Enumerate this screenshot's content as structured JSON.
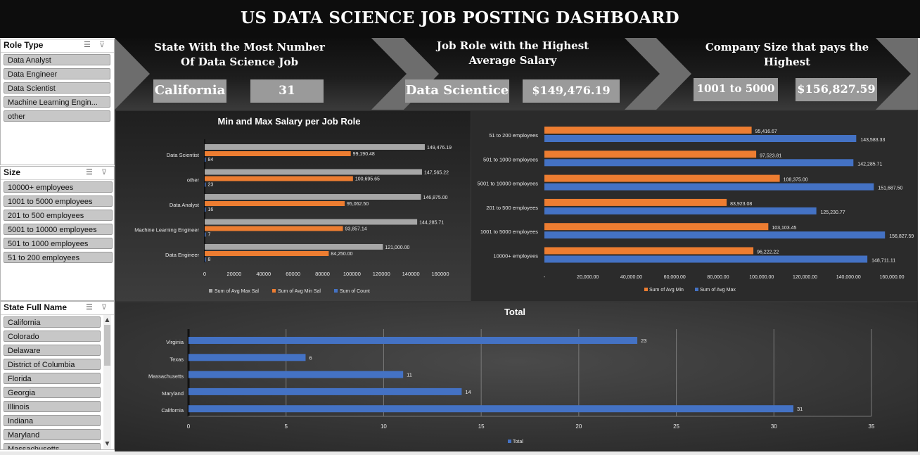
{
  "dashboard": {
    "title": "US DATA SCIENCE JOB POSTING DASHBOARD"
  },
  "slicers": {
    "role_type": {
      "title": "Role Type",
      "items": [
        "Data Analyst",
        "Data Engineer",
        "Data Scientist",
        "Machine Learning Engin...",
        "other"
      ]
    },
    "size": {
      "title": "Size",
      "items": [
        "10000+ employees",
        "1001 to 5000 employees",
        "201 to 500 employees",
        "5001 to 10000 employees",
        "501 to 1000 employees",
        "51 to 200 employees"
      ]
    },
    "state": {
      "title": "State Full Name",
      "items": [
        "California",
        "Colorado",
        "Delaware",
        "District of Columbia",
        "Florida",
        "Georgia",
        "Illinois",
        "Indiana",
        "Maryland",
        "Massachusetts"
      ]
    }
  },
  "kpis": {
    "state": {
      "title_line1": "State With the Most Number",
      "title_line2": "Of Data Science Job",
      "value": "California",
      "count": "31"
    },
    "role": {
      "title_line1": "Job Role with the Highest",
      "title_line2": "Average Salary",
      "value": "Data Scientice",
      "amount": "$149,476.19"
    },
    "company": {
      "title_line1": "Company Size that pays the",
      "title_line2": "Highest",
      "value": "1001 to 5000",
      "amount": "$156,827.59"
    }
  },
  "colors": {
    "gray_series": "#a6a6a6",
    "orange_series": "#ed7d31",
    "blue_series": "#4472c4",
    "panel": "#333333",
    "kpi_box": "#9a9a9a"
  },
  "chart_data": [
    {
      "type": "bar",
      "orientation": "horizontal",
      "title": "Min and Max Salary per Job Role",
      "categories": [
        "Data Scientist",
        "other",
        "Data Analyst",
        "Machine Learning Engineer",
        "Data Engineer"
      ],
      "series": [
        {
          "name": "Sum of Avg Max Sal",
          "values": [
            149476.19,
            147565.22,
            146875.0,
            144285.71,
            121000.0
          ],
          "labels": [
            "149,476.19",
            "147,565.22",
            "146,875.00",
            "144,285.71",
            "121,000.00"
          ]
        },
        {
          "name": "Sum of Avg Min Sal",
          "values": [
            99190.48,
            100695.65,
            95062.5,
            93857.14,
            84250.0
          ],
          "labels": [
            "99,190.48",
            "100,695.65",
            "95,062.50",
            "93,857.14",
            "84,250.00"
          ]
        },
        {
          "name": "Sum of Count",
          "values": [
            84,
            23,
            16,
            7,
            8
          ],
          "labels": [
            "84",
            "23",
            "16",
            "7",
            "8"
          ]
        }
      ],
      "xlim": [
        0,
        160000
      ],
      "xticks": [
        "0",
        "20000",
        "40000",
        "60000",
        "80000",
        "100000",
        "120000",
        "140000",
        "160000"
      ],
      "legend": "bottom",
      "grid": false
    },
    {
      "type": "bar",
      "orientation": "horizontal",
      "title": "",
      "categories": [
        "51 to 200 employees",
        "501 to 1000 employees",
        "5001 to 10000 employees",
        "201 to 500 employees",
        "1001 to 5000 employees",
        "10000+ employees"
      ],
      "series": [
        {
          "name": "Sum of Avg Min",
          "values": [
            95416.67,
            97523.81,
            108375.0,
            83923.08,
            103103.45,
            96222.22
          ],
          "labels": [
            "95,416.67",
            "97,523.81",
            "108,375.00",
            "83,923.08",
            "103,103.45",
            "96,222.22"
          ]
        },
        {
          "name": "Sum of Avg Max",
          "values": [
            143583.33,
            142285.71,
            151687.5,
            125230.77,
            156827.59,
            148711.11
          ],
          "labels": [
            "143,583.33",
            "142,285.71",
            "151,687.50",
            "125,230.77",
            "156,827.59",
            "148,711.11"
          ]
        }
      ],
      "xlim": [
        0,
        160000
      ],
      "xticks": [
        "-",
        "20,000.00",
        "40,000.00",
        "60,000.00",
        "80,000.00",
        "100,000.00",
        "120,000.00",
        "140,000.00",
        "160,000.00"
      ],
      "legend": "bottom",
      "grid": false
    },
    {
      "type": "bar",
      "orientation": "horizontal",
      "title": "Total",
      "categories": [
        "Virginia",
        "Texas",
        "Massachusetts",
        "Maryland",
        "California"
      ],
      "series": [
        {
          "name": "Total",
          "values": [
            23,
            6,
            11,
            14,
            31
          ],
          "labels": [
            "23",
            "6",
            "11",
            "14",
            "31"
          ]
        }
      ],
      "xlim": [
        0,
        35
      ],
      "xticks": [
        "0",
        "5",
        "10",
        "15",
        "20",
        "25",
        "30",
        "35"
      ],
      "legend": "bottom",
      "grid": true
    }
  ]
}
